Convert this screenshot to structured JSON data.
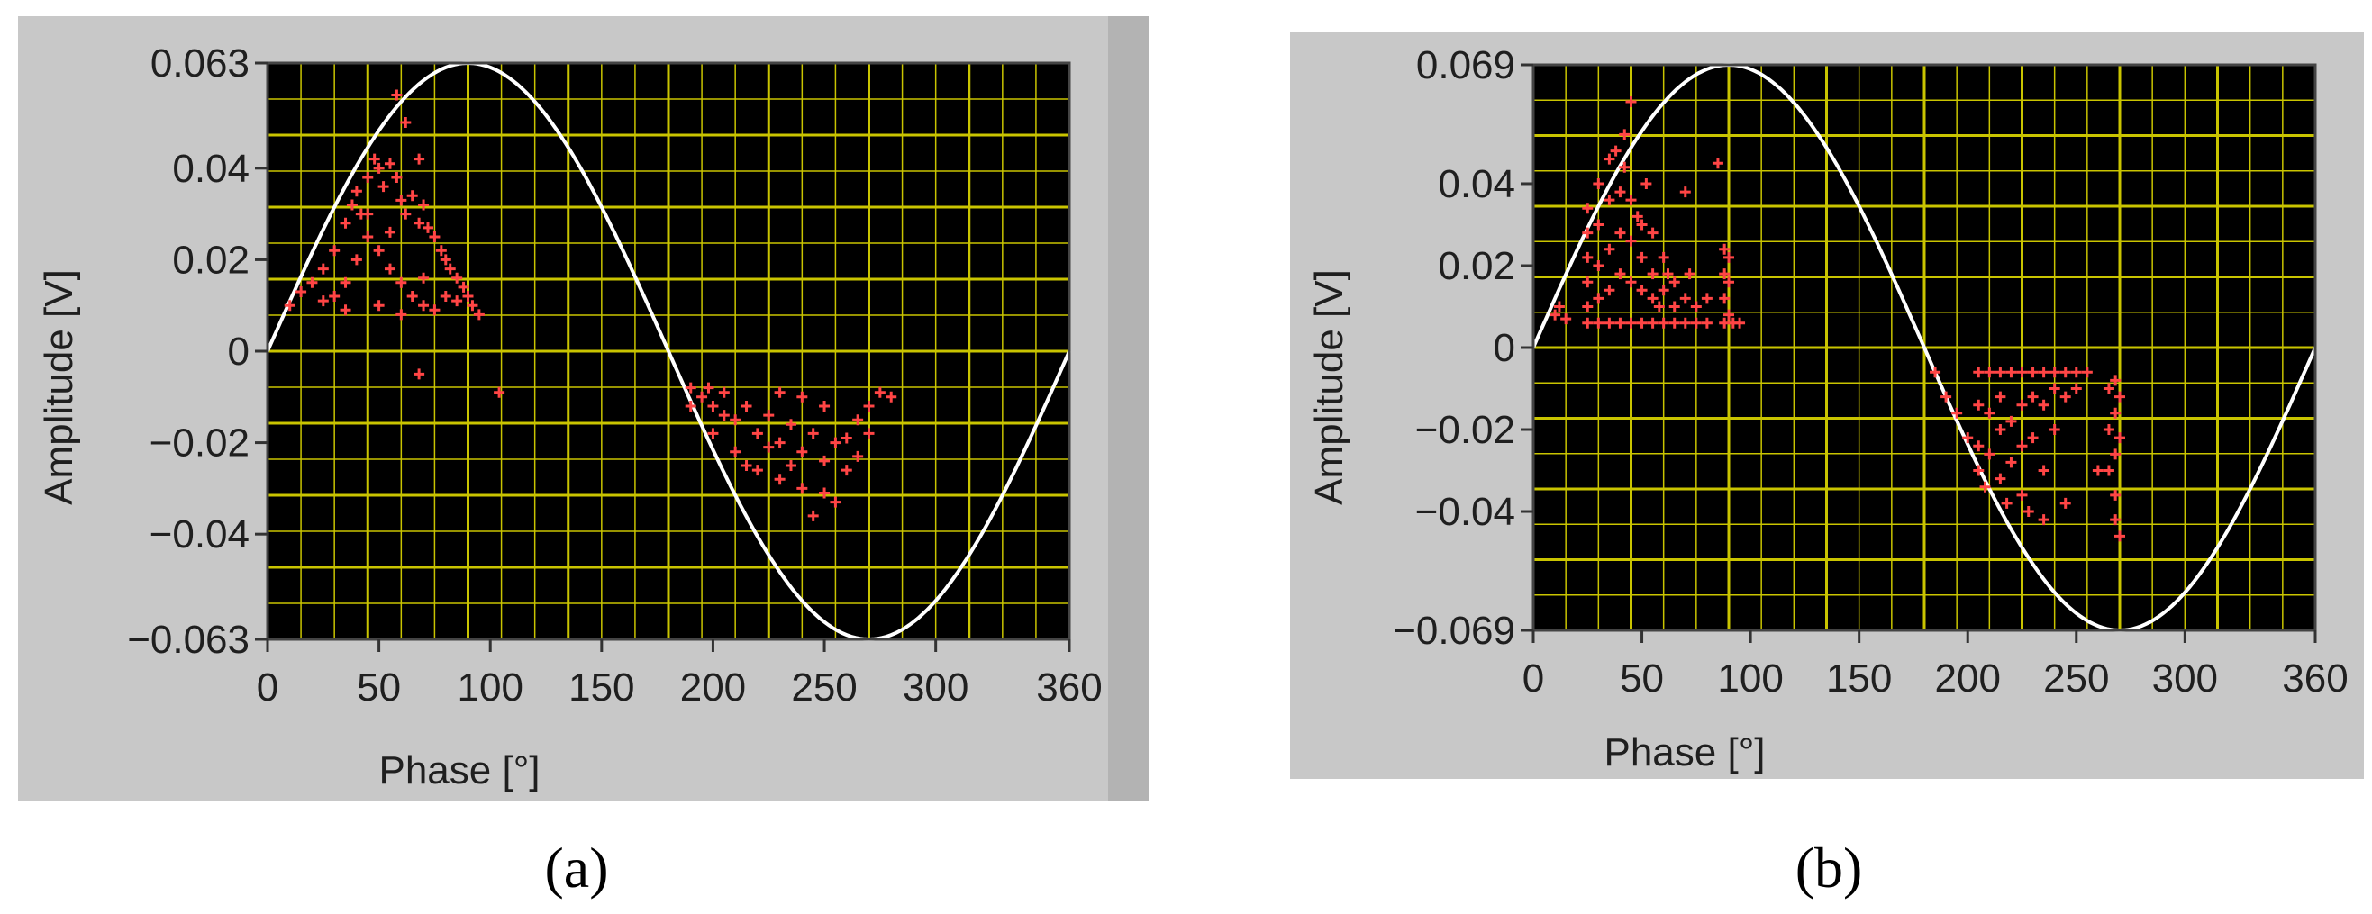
{
  "captions": [
    "(a)",
    "(b)"
  ],
  "colors": {
    "panel": "#c8c8c8",
    "plot_background": "#000000",
    "grid": "#c9c400",
    "reference": "#ffffff",
    "points": "#ff4545"
  },
  "chart_data": [
    {
      "type": "scatter",
      "panel_label": "(a)",
      "xlabel": "Phase [°]",
      "ylabel": "Amplitude [V]",
      "xlim": [
        0,
        360
      ],
      "ylim": [
        -0.063,
        0.063
      ],
      "x_ticks": [
        0,
        50,
        100,
        150,
        200,
        250,
        300,
        360
      ],
      "y_ticks": [
        0.063,
        0.04,
        0.02,
        0,
        -0.02,
        -0.04,
        -0.063
      ],
      "y_tick_labels": [
        "0.063",
        "0.04",
        "0.02",
        "0",
        "−0.02",
        "−0.04",
        "−0.063"
      ],
      "grid": true,
      "reference_curve": {
        "type": "sine",
        "amplitude": 0.063,
        "period": 360
      },
      "series": [
        {
          "marker": "+",
          "values": [
            [
              10,
              0.01
            ],
            [
              15,
              0.013
            ],
            [
              20,
              0.015
            ],
            [
              25,
              0.018
            ],
            [
              30,
              0.022
            ],
            [
              35,
              0.028
            ],
            [
              38,
              0.032
            ],
            [
              40,
              0.035
            ],
            [
              42,
              0.03
            ],
            [
              45,
              0.038
            ],
            [
              48,
              0.042
            ],
            [
              50,
              0.04
            ],
            [
              52,
              0.036
            ],
            [
              55,
              0.041
            ],
            [
              58,
              0.038
            ],
            [
              60,
              0.033
            ],
            [
              62,
              0.03
            ],
            [
              65,
              0.034
            ],
            [
              68,
              0.028
            ],
            [
              70,
              0.032
            ],
            [
              72,
              0.027
            ],
            [
              75,
              0.025
            ],
            [
              78,
              0.022
            ],
            [
              80,
              0.02
            ],
            [
              82,
              0.018
            ],
            [
              85,
              0.016
            ],
            [
              88,
              0.014
            ],
            [
              90,
              0.012
            ],
            [
              92,
              0.01
            ],
            [
              95,
              0.008
            ],
            [
              30,
              0.012
            ],
            [
              35,
              0.015
            ],
            [
              40,
              0.02
            ],
            [
              45,
              0.025
            ],
            [
              50,
              0.022
            ],
            [
              55,
              0.018
            ],
            [
              60,
              0.015
            ],
            [
              65,
              0.012
            ],
            [
              70,
              0.01
            ],
            [
              75,
              0.009
            ],
            [
              80,
              0.012
            ],
            [
              85,
              0.011
            ],
            [
              50,
              0.01
            ],
            [
              60,
              0.008
            ],
            [
              70,
              0.016
            ],
            [
              62,
              0.05
            ],
            [
              58,
              0.056
            ],
            [
              68,
              0.042
            ],
            [
              45,
              0.03
            ],
            [
              55,
              0.026
            ],
            [
              35,
              0.009
            ],
            [
              25,
              0.011
            ],
            [
              68,
              -0.005
            ],
            [
              104,
              -0.009
            ],
            [
              190,
              -0.008
            ],
            [
              195,
              -0.01
            ],
            [
              200,
              -0.012
            ],
            [
              205,
              -0.009
            ],
            [
              210,
              -0.015
            ],
            [
              215,
              -0.012
            ],
            [
              220,
              -0.018
            ],
            [
              225,
              -0.014
            ],
            [
              230,
              -0.02
            ],
            [
              235,
              -0.016
            ],
            [
              240,
              -0.022
            ],
            [
              245,
              -0.018
            ],
            [
              250,
              -0.024
            ],
            [
              255,
              -0.02
            ],
            [
              260,
              -0.026
            ],
            [
              265,
              -0.015
            ],
            [
              270,
              -0.012
            ],
            [
              275,
              -0.009
            ],
            [
              280,
              -0.01
            ],
            [
              220,
              -0.026
            ],
            [
              230,
              -0.028
            ],
            [
              240,
              -0.03
            ],
            [
              250,
              -0.031
            ],
            [
              245,
              -0.036
            ],
            [
              255,
              -0.033
            ],
            [
              210,
              -0.022
            ],
            [
              200,
              -0.018
            ],
            [
              215,
              -0.025
            ],
            [
              235,
              -0.025
            ],
            [
              260,
              -0.019
            ],
            [
              265,
              -0.023
            ],
            [
              225,
              -0.021
            ],
            [
              205,
              -0.014
            ],
            [
              190,
              -0.012
            ],
            [
              198,
              -0.008
            ],
            [
              270,
              -0.018
            ],
            [
              240,
              -0.01
            ],
            [
              250,
              -0.012
            ],
            [
              230,
              -0.009
            ]
          ]
        }
      ]
    },
    {
      "type": "scatter",
      "panel_label": "(b)",
      "xlabel": "Phase [°]",
      "ylabel": "Amplitude [V]",
      "xlim": [
        0,
        360
      ],
      "ylim": [
        -0.069,
        0.069
      ],
      "x_ticks": [
        0,
        50,
        100,
        150,
        200,
        250,
        300,
        360
      ],
      "y_ticks": [
        0.069,
        0.04,
        0.02,
        0,
        -0.02,
        -0.04,
        -0.069
      ],
      "y_tick_labels": [
        "0.069",
        "0.04",
        "0.02",
        "0",
        "−0.02",
        "−0.04",
        "−0.069"
      ],
      "grid": true,
      "reference_curve": {
        "type": "sine",
        "amplitude": 0.069,
        "period": 360
      },
      "series": [
        {
          "marker": "+",
          "values": [
            [
              10,
              0.008
            ],
            [
              12,
              0.01
            ],
            [
              15,
              0.007
            ],
            [
              25,
              0.006
            ],
            [
              25,
              0.01
            ],
            [
              25,
              0.016
            ],
            [
              25,
              0.022
            ],
            [
              25,
              0.028
            ],
            [
              25,
              0.034
            ],
            [
              30,
              0.006
            ],
            [
              30,
              0.012
            ],
            [
              30,
              0.02
            ],
            [
              30,
              0.03
            ],
            [
              30,
              0.04
            ],
            [
              35,
              0.006
            ],
            [
              35,
              0.014
            ],
            [
              35,
              0.024
            ],
            [
              35,
              0.036
            ],
            [
              35,
              0.046
            ],
            [
              38,
              0.048
            ],
            [
              40,
              0.006
            ],
            [
              40,
              0.018
            ],
            [
              40,
              0.028
            ],
            [
              40,
              0.038
            ],
            [
              42,
              0.044
            ],
            [
              45,
              0.006
            ],
            [
              45,
              0.016
            ],
            [
              45,
              0.026
            ],
            [
              45,
              0.036
            ],
            [
              48,
              0.032
            ],
            [
              50,
              0.006
            ],
            [
              50,
              0.014
            ],
            [
              50,
              0.022
            ],
            [
              50,
              0.03
            ],
            [
              52,
              0.04
            ],
            [
              55,
              0.006
            ],
            [
              55,
              0.012
            ],
            [
              55,
              0.018
            ],
            [
              55,
              0.028
            ],
            [
              58,
              0.01
            ],
            [
              60,
              0.006
            ],
            [
              60,
              0.014
            ],
            [
              60,
              0.022
            ],
            [
              62,
              0.018
            ],
            [
              65,
              0.006
            ],
            [
              65,
              0.01
            ],
            [
              65,
              0.016
            ],
            [
              70,
              0.006
            ],
            [
              70,
              0.012
            ],
            [
              72,
              0.018
            ],
            [
              75,
              0.006
            ],
            [
              75,
              0.01
            ],
            [
              80,
              0.006
            ],
            [
              80,
              0.012
            ],
            [
              88,
              0.006
            ],
            [
              88,
              0.012
            ],
            [
              88,
              0.018
            ],
            [
              88,
              0.024
            ],
            [
              90,
              0.008
            ],
            [
              90,
              0.016
            ],
            [
              90,
              0.022
            ],
            [
              92,
              0.006
            ],
            [
              45,
              0.06
            ],
            [
              42,
              0.052
            ],
            [
              85,
              0.045
            ],
            [
              70,
              0.038
            ],
            [
              95,
              0.006
            ],
            [
              185,
              -0.006
            ],
            [
              190,
              -0.012
            ],
            [
              195,
              -0.016
            ],
            [
              200,
              -0.022
            ],
            [
              205,
              -0.006
            ],
            [
              205,
              -0.014
            ],
            [
              205,
              -0.024
            ],
            [
              205,
              -0.03
            ],
            [
              210,
              -0.006
            ],
            [
              210,
              -0.016
            ],
            [
              210,
              -0.026
            ],
            [
              215,
              -0.006
            ],
            [
              215,
              -0.012
            ],
            [
              215,
              -0.02
            ],
            [
              215,
              -0.032
            ],
            [
              220,
              -0.006
            ],
            [
              220,
              -0.018
            ],
            [
              220,
              -0.028
            ],
            [
              225,
              -0.006
            ],
            [
              225,
              -0.014
            ],
            [
              225,
              -0.024
            ],
            [
              225,
              -0.036
            ],
            [
              230,
              -0.006
            ],
            [
              230,
              -0.012
            ],
            [
              230,
              -0.022
            ],
            [
              235,
              -0.006
            ],
            [
              235,
              -0.014
            ],
            [
              235,
              -0.03
            ],
            [
              240,
              -0.006
            ],
            [
              240,
              -0.01
            ],
            [
              240,
              -0.02
            ],
            [
              245,
              -0.006
            ],
            [
              245,
              -0.012
            ],
            [
              250,
              -0.006
            ],
            [
              250,
              -0.01
            ],
            [
              255,
              -0.006
            ],
            [
              208,
              -0.034
            ],
            [
              218,
              -0.038
            ],
            [
              228,
              -0.04
            ],
            [
              265,
              -0.01
            ],
            [
              265,
              -0.02
            ],
            [
              265,
              -0.03
            ],
            [
              268,
              -0.008
            ],
            [
              268,
              -0.016
            ],
            [
              268,
              -0.026
            ],
            [
              268,
              -0.036
            ],
            [
              268,
              -0.042
            ],
            [
              270,
              -0.012
            ],
            [
              270,
              -0.022
            ],
            [
              270,
              -0.046
            ],
            [
              235,
              -0.042
            ],
            [
              245,
              -0.038
            ],
            [
              260,
              -0.03
            ]
          ]
        }
      ]
    }
  ]
}
